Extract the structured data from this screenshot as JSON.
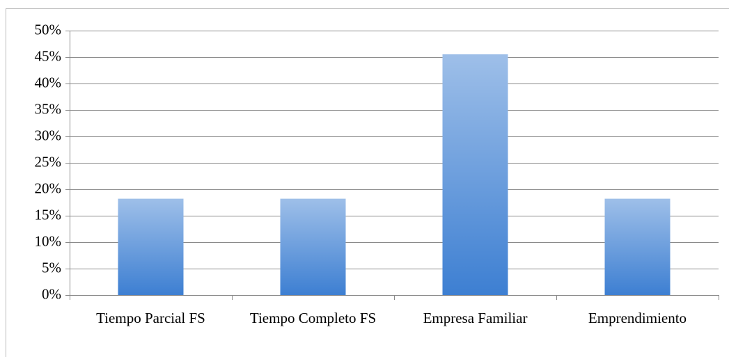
{
  "chart_data": {
    "type": "bar",
    "categories": [
      "Tiempo Parcial FS",
      "Tiempo Completo FS",
      "Empresa Familiar",
      "Emprendimiento"
    ],
    "values": [
      18.2,
      18.2,
      45.5,
      18.2
    ],
    "color": "#3d7fd2",
    "ylim": [
      0,
      50
    ],
    "yticks": [
      {
        "value": 0,
        "label": "0%"
      },
      {
        "value": 5,
        "label": "5%"
      },
      {
        "value": 10,
        "label": "10%"
      },
      {
        "value": 15,
        "label": "15%"
      },
      {
        "value": 20,
        "label": "20%"
      },
      {
        "value": 25,
        "label": "25%"
      },
      {
        "value": 30,
        "label": "30%"
      },
      {
        "value": 35,
        "label": "35%"
      },
      {
        "value": 40,
        "label": "40%"
      },
      {
        "value": 45,
        "label": "45%"
      },
      {
        "value": 50,
        "label": "50%"
      }
    ],
    "grid": true
  }
}
